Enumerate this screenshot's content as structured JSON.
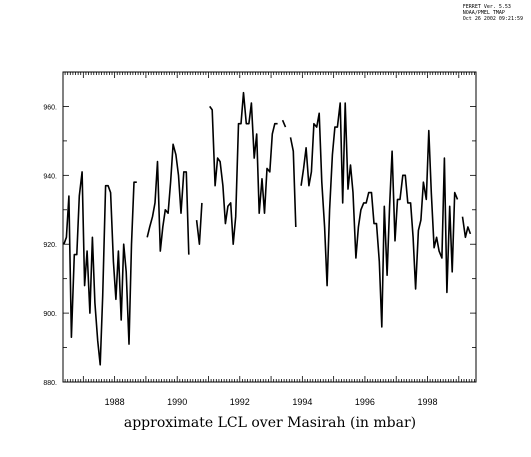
{
  "stamp": {
    "line1": "FERRET Ver. 5.53",
    "line2": "NOAA/PMEL TMAP",
    "line3": "Oct 26 2002 09:21:59"
  },
  "chart_data": {
    "type": "line",
    "title": "",
    "xlabel": "approximate LCL over Masirah (in mbar)",
    "ylabel": "",
    "xlim": [
      1986.35,
      1999.55
    ],
    "ylim": [
      880,
      970
    ],
    "yticks": [
      880,
      900,
      920,
      940,
      960
    ],
    "ytick_labels": [
      "880.",
      "900.",
      "920.",
      "940.",
      "960."
    ],
    "xticks": [
      1988,
      1990,
      1992,
      1994,
      1996,
      1998
    ],
    "xtick_labels": [
      "1988",
      "1990",
      "1992",
      "1994",
      "1996",
      "1998"
    ],
    "grid": false,
    "series": [
      {
        "color": "#000000",
        "segments": [
          [
            [
              1986.38,
              920
            ],
            [
              1986.46,
              922
            ],
            [
              1986.54,
              934
            ],
            [
              1986.62,
              893
            ],
            [
              1986.71,
              917
            ],
            [
              1986.79,
              917
            ],
            [
              1986.87,
              934
            ],
            [
              1986.96,
              941
            ],
            [
              1987.04,
              908
            ],
            [
              1987.12,
              918
            ],
            [
              1987.21,
              900
            ],
            [
              1987.29,
              922
            ],
            [
              1987.37,
              903
            ],
            [
              1987.46,
              892
            ],
            [
              1987.54,
              885
            ],
            [
              1987.62,
              905
            ],
            [
              1987.71,
              937
            ],
            [
              1987.79,
              937
            ],
            [
              1987.87,
              935
            ],
            [
              1987.96,
              915
            ],
            [
              1988.04,
              904
            ],
            [
              1988.12,
              918
            ],
            [
              1988.21,
              898
            ],
            [
              1988.29,
              920
            ],
            [
              1988.37,
              912
            ],
            [
              1988.46,
              891
            ],
            [
              1988.54,
              920
            ],
            [
              1988.62,
              938
            ],
            [
              1988.71,
              938
            ]
          ],
          [
            [
              1989.04,
              922
            ],
            [
              1989.12,
              925
            ],
            [
              1989.21,
              928
            ],
            [
              1989.29,
              932
            ],
            [
              1989.37,
              944
            ],
            [
              1989.46,
              918
            ],
            [
              1989.54,
              925
            ],
            [
              1989.62,
              930
            ],
            [
              1989.71,
              929
            ],
            [
              1989.79,
              938
            ],
            [
              1989.87,
              949
            ],
            [
              1989.96,
              946
            ],
            [
              1990.04,
              940
            ],
            [
              1990.12,
              929
            ],
            [
              1990.21,
              941
            ],
            [
              1990.29,
              941
            ],
            [
              1990.37,
              917
            ]
          ],
          [
            [
              1990.62,
              927
            ],
            [
              1990.71,
              920
            ],
            [
              1990.79,
              932
            ]
          ],
          [
            [
              1991.04,
              960
            ],
            [
              1991.12,
              959
            ],
            [
              1991.21,
              937
            ],
            [
              1991.29,
              945
            ],
            [
              1991.37,
              944
            ],
            [
              1991.46,
              937
            ],
            [
              1991.54,
              926
            ],
            [
              1991.62,
              931
            ],
            [
              1991.71,
              932
            ],
            [
              1991.79,
              920
            ],
            [
              1991.87,
              928
            ],
            [
              1991.96,
              955
            ],
            [
              1992.04,
              955
            ],
            [
              1992.12,
              964
            ],
            [
              1992.21,
              955
            ],
            [
              1992.29,
              955
            ],
            [
              1992.37,
              961
            ],
            [
              1992.46,
              945
            ],
            [
              1992.54,
              952
            ],
            [
              1992.62,
              929
            ],
            [
              1992.71,
              939
            ],
            [
              1992.79,
              929
            ],
            [
              1992.87,
              942
            ],
            [
              1992.96,
              941
            ],
            [
              1993.04,
              952
            ],
            [
              1993.12,
              955
            ],
            [
              1993.21,
              955
            ]
          ],
          [
            [
              1993.37,
              956
            ],
            [
              1993.46,
              954
            ]
          ],
          [
            [
              1993.62,
              951
            ],
            [
              1993.71,
              947
            ],
            [
              1993.79,
              925
            ]
          ],
          [
            [
              1993.96,
              937
            ],
            [
              1994.04,
              942
            ],
            [
              1994.12,
              948
            ],
            [
              1994.21,
              937
            ],
            [
              1994.29,
              941
            ],
            [
              1994.37,
              955
            ],
            [
              1994.46,
              954
            ],
            [
              1994.54,
              958
            ],
            [
              1994.62,
              938
            ],
            [
              1994.71,
              925
            ],
            [
              1994.79,
              908
            ],
            [
              1994.87,
              930
            ],
            [
              1994.96,
              946
            ],
            [
              1995.04,
              954
            ],
            [
              1995.12,
              954
            ],
            [
              1995.21,
              961
            ],
            [
              1995.29,
              932
            ],
            [
              1995.37,
              961
            ],
            [
              1995.46,
              936
            ],
            [
              1995.54,
              943
            ],
            [
              1995.62,
              935
            ],
            [
              1995.71,
              916
            ],
            [
              1995.79,
              925
            ],
            [
              1995.87,
              930
            ],
            [
              1995.96,
              932
            ],
            [
              1996.04,
              932
            ],
            [
              1996.12,
              935
            ],
            [
              1996.21,
              935
            ],
            [
              1996.29,
              926
            ],
            [
              1996.37,
              926
            ],
            [
              1996.46,
              915
            ],
            [
              1996.54,
              896
            ],
            [
              1996.62,
              931
            ],
            [
              1996.71,
              911
            ],
            [
              1996.79,
              931
            ],
            [
              1996.87,
              947
            ],
            [
              1996.96,
              921
            ],
            [
              1997.04,
              933
            ],
            [
              1997.12,
              933
            ],
            [
              1997.21,
              940
            ],
            [
              1997.29,
              940
            ],
            [
              1997.37,
              932
            ],
            [
              1997.46,
              932
            ],
            [
              1997.54,
              922
            ],
            [
              1997.62,
              907
            ],
            [
              1997.71,
              924
            ],
            [
              1997.79,
              927
            ],
            [
              1997.87,
              938
            ],
            [
              1997.96,
              933
            ],
            [
              1998.04,
              953
            ],
            [
              1998.12,
              935
            ],
            [
              1998.21,
              919
            ],
            [
              1998.29,
              922
            ],
            [
              1998.37,
              918
            ],
            [
              1998.46,
              916
            ],
            [
              1998.54,
              945
            ],
            [
              1998.62,
              906
            ],
            [
              1998.71,
              931
            ],
            [
              1998.79,
              912
            ],
            [
              1998.87,
              935
            ],
            [
              1998.96,
              933
            ]
          ],
          [
            [
              1999.12,
              928
            ],
            [
              1999.21,
              922
            ],
            [
              1999.29,
              925
            ],
            [
              1999.37,
              923
            ]
          ]
        ]
      }
    ]
  }
}
